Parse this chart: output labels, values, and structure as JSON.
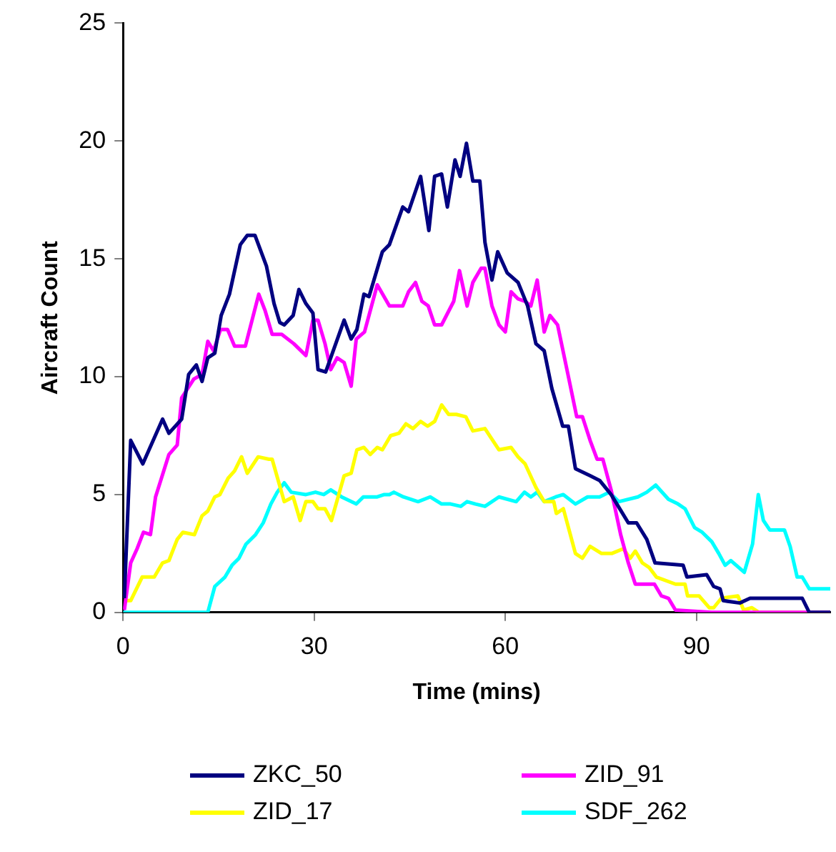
{
  "chart_data": {
    "type": "line",
    "xlabel": "Time (mins)",
    "ylabel": "Aircraft Count",
    "xlim": [
      0,
      111
    ],
    "xticks": [
      0,
      30,
      60,
      90
    ],
    "ylim": [
      0,
      25
    ],
    "yticks": [
      0,
      5,
      10,
      15,
      20,
      25
    ],
    "grid": false,
    "legend": "bottom",
    "marker": "none",
    "line_style": "solid",
    "series": [
      {
        "name": "ZKC_50",
        "color": "#000080",
        "x": [
          0.2,
          1.2,
          3.1,
          6.2,
          7.2,
          9.2,
          10.3,
          11.5,
          12.4,
          13.3,
          14.4,
          15.4,
          16.7,
          18.4,
          19.5,
          20.7,
          22.5,
          23.7,
          24.6,
          25.3,
          26.7,
          27.6,
          28.7,
          29.8,
          30.6,
          31.8,
          34.7,
          35.8,
          36.7,
          37.8,
          38.6,
          40.7,
          41.8,
          43.9,
          44.8,
          46.7,
          48.0,
          48.9,
          50.0,
          50.9,
          52.1,
          52.9,
          53.9,
          54.9,
          56.0,
          56.8,
          57.9,
          58.8,
          60.3,
          62.0,
          63.5,
          64.8,
          66.1,
          67.3,
          69.0,
          69.9,
          71.0,
          73.3,
          74.8,
          76.6,
          79.3,
          80.6,
          82.2,
          83.5,
          87.9,
          88.5,
          91.6,
          92.7,
          93.7,
          94.2,
          96.8,
          98.4,
          106.6,
          107.7,
          111
        ],
        "values": [
          0.6,
          7.3,
          6.3,
          8.2,
          7.6,
          8.2,
          10.1,
          10.5,
          9.8,
          10.8,
          11.0,
          12.6,
          13.5,
          15.6,
          16.0,
          16.0,
          14.7,
          13.1,
          12.3,
          12.2,
          12.6,
          13.7,
          13.1,
          12.7,
          10.3,
          10.2,
          12.4,
          11.6,
          12.0,
          13.5,
          13.4,
          15.3,
          15.6,
          17.2,
          17.0,
          18.5,
          16.2,
          18.5,
          18.6,
          17.2,
          19.2,
          18.5,
          19.9,
          18.3,
          18.3,
          15.7,
          14.1,
          15.3,
          14.4,
          14.0,
          13.0,
          11.4,
          11.1,
          9.5,
          7.9,
          7.9,
          6.1,
          5.8,
          5.6,
          5.0,
          3.8,
          3.8,
          3.1,
          2.1,
          2.0,
          1.5,
          1.6,
          1.1,
          1.0,
          0.5,
          0.4,
          0.6,
          0.6,
          0,
          0
        ]
      },
      {
        "name": "ZID_91",
        "color": "#ff00ff",
        "x": [
          0.2,
          1.2,
          2.2,
          3.2,
          4.3,
          5.1,
          7.2,
          8.5,
          9.2,
          11.1,
          12.4,
          13.3,
          14.2,
          15.3,
          16.4,
          17.5,
          19.2,
          21.3,
          22.3,
          23.4,
          24.9,
          26.8,
          28.7,
          29.8,
          30.6,
          31.7,
          32.6,
          33.6,
          34.7,
          35.8,
          36.6,
          37.9,
          39.9,
          41.8,
          43.9,
          44.8,
          45.9,
          46.9,
          47.9,
          48.9,
          50.0,
          51.9,
          52.8,
          54.0,
          54.9,
          56.2,
          56.8,
          57.9,
          59.0,
          60.0,
          60.9,
          62.0,
          63.1,
          64.0,
          65.0,
          66.1,
          67.0,
          68.2,
          69.9,
          71.2,
          72.1,
          73.3,
          74.4,
          75.3,
          76.6,
          78.1,
          79.3,
          80.4,
          83.4,
          84.5,
          85.6,
          86.7,
          92.4,
          111
        ],
        "values": [
          0.1,
          2.1,
          2.7,
          3.4,
          3.3,
          4.9,
          6.7,
          7.1,
          9.1,
          9.9,
          10.1,
          11.5,
          11.1,
          12.0,
          12.0,
          11.3,
          11.3,
          13.5,
          12.8,
          11.8,
          11.8,
          11.4,
          10.9,
          12.4,
          12.4,
          11.4,
          10.3,
          10.8,
          10.6,
          9.6,
          11.6,
          11.9,
          13.9,
          13.0,
          13.0,
          13.6,
          14.0,
          13.2,
          13.0,
          12.2,
          12.2,
          13.2,
          14.5,
          13.0,
          14.0,
          14.6,
          14.6,
          13.0,
          12.2,
          11.9,
          13.6,
          13.3,
          13.2,
          13.0,
          14.1,
          11.9,
          12.6,
          12.2,
          10.0,
          8.3,
          8.3,
          7.3,
          6.5,
          6.5,
          5.2,
          3.3,
          2.1,
          1.2,
          1.2,
          0.7,
          0.6,
          0.1,
          0,
          0
        ]
      },
      {
        "name": "ZID_17",
        "color": "#ffff00",
        "x": [
          0.2,
          1.2,
          3.0,
          4.9,
          6.2,
          7.2,
          8.5,
          9.4,
          11.2,
          12.4,
          13.3,
          14.4,
          15.2,
          16.5,
          17.5,
          18.6,
          19.5,
          21.2,
          22.9,
          23.4,
          25.3,
          26.7,
          27.8,
          28.7,
          29.8,
          30.6,
          31.7,
          32.7,
          34.7,
          35.8,
          36.7,
          37.8,
          38.8,
          39.9,
          40.7,
          42.0,
          43.3,
          44.4,
          45.5,
          46.7,
          47.8,
          48.9,
          50.0,
          51.1,
          52.3,
          53.8,
          54.9,
          56.8,
          59.0,
          60.9,
          62.0,
          63.1,
          64.8,
          66.1,
          67.6,
          68.0,
          69.1,
          71.0,
          72.1,
          73.3,
          75.1,
          76.7,
          78.5,
          79.6,
          80.4,
          81.5,
          82.6,
          83.7,
          86.7,
          88.2,
          88.6,
          90.4,
          92.0,
          92.7,
          93.9,
          96.5,
          97.4,
          98.7,
          99.8,
          111
        ],
        "values": [
          0.5,
          0.5,
          1.5,
          1.5,
          2.1,
          2.2,
          3.1,
          3.4,
          3.3,
          4.1,
          4.3,
          4.9,
          5.0,
          5.7,
          6.0,
          6.6,
          5.9,
          6.6,
          6.5,
          6.5,
          4.7,
          4.9,
          3.9,
          4.7,
          4.7,
          4.4,
          4.4,
          3.9,
          5.8,
          5.9,
          6.9,
          7.0,
          6.7,
          7.0,
          6.9,
          7.5,
          7.6,
          8.0,
          7.8,
          8.1,
          7.9,
          8.1,
          8.8,
          8.4,
          8.4,
          8.3,
          7.7,
          7.8,
          6.9,
          7.0,
          6.6,
          6.3,
          5.3,
          4.7,
          4.7,
          4.2,
          4.4,
          2.5,
          2.3,
          2.8,
          2.5,
          2.5,
          2.7,
          2.3,
          2.6,
          2.1,
          1.9,
          1.5,
          1.2,
          1.2,
          0.7,
          0.7,
          0.2,
          0.2,
          0.6,
          0.7,
          0.1,
          0.2,
          0,
          0
        ]
      },
      {
        "name": "SDF_262",
        "color": "#00ffff",
        "x": [
          0,
          13.3,
          14.4,
          16.0,
          17.1,
          18.2,
          19.3,
          20.8,
          22.0,
          23.2,
          24.2,
          25.3,
          26.4,
          28.7,
          30.2,
          31.5,
          32.6,
          34.3,
          36.6,
          37.7,
          39.9,
          41.0,
          41.8,
          42.5,
          44.0,
          46.3,
          48.2,
          50.0,
          51.4,
          53.0,
          54.0,
          55.3,
          56.8,
          59.0,
          61.7,
          63.0,
          64.0,
          65.0,
          66.1,
          67.9,
          69.1,
          71.0,
          72.9,
          74.8,
          76.3,
          77.8,
          80.8,
          82.2,
          83.6,
          85.6,
          87.1,
          88.2,
          89.7,
          90.9,
          92.4,
          93.5,
          94.5,
          95.4,
          97.5,
          98.8,
          99.7,
          100.5,
          101.5,
          103.8,
          104.7,
          105.8,
          106.6,
          107.7,
          111
        ],
        "values": [
          0,
          0,
          1.1,
          1.5,
          2.0,
          2.3,
          2.9,
          3.3,
          3.8,
          4.6,
          5.1,
          5.5,
          5.1,
          5.0,
          5.1,
          5.0,
          5.2,
          4.9,
          4.6,
          4.9,
          4.9,
          5.0,
          5.0,
          5.1,
          4.9,
          4.7,
          4.9,
          4.6,
          4.6,
          4.5,
          4.7,
          4.6,
          4.5,
          4.9,
          4.7,
          5.1,
          4.9,
          5.1,
          4.7,
          4.9,
          5.0,
          4.6,
          4.9,
          4.9,
          5.1,
          4.7,
          4.9,
          5.1,
          5.4,
          4.8,
          4.6,
          4.4,
          3.6,
          3.4,
          3.0,
          2.5,
          2.0,
          2.2,
          1.7,
          2.9,
          5.0,
          3.9,
          3.5,
          3.5,
          2.8,
          1.5,
          1.5,
          1.0,
          1.0
        ]
      }
    ]
  }
}
